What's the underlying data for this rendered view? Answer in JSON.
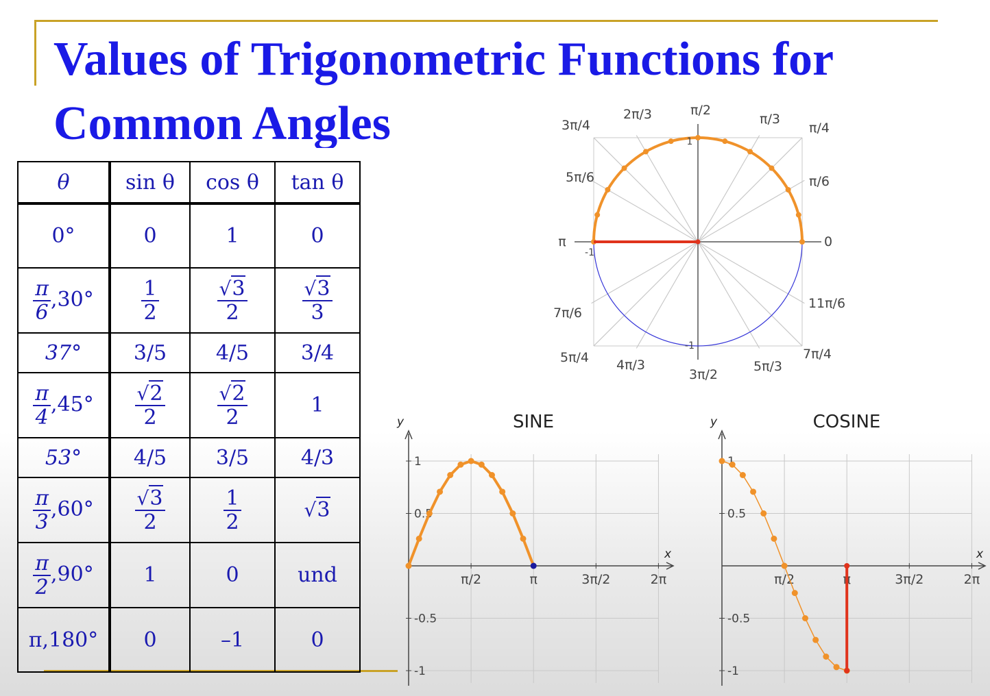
{
  "title": {
    "line1": "Values of Trigonometric Functions for",
    "line2": "Common Angles"
  },
  "table": {
    "headers": [
      "θ",
      "sin θ",
      "cos θ",
      "tan θ"
    ],
    "rows": [
      {
        "angle": "0°",
        "sin": "0",
        "cos": "1",
        "tan": "0"
      },
      {
        "angle_num": "π",
        "angle_den": "6",
        "angle_deg": ",30°",
        "sin_num": "1",
        "sin_den": "2",
        "cos_rad": "3",
        "cos_den": "2",
        "tan_rad": "3",
        "tan_den": "3"
      },
      {
        "angle": "37°",
        "sin": "3/5",
        "cos": "4/5",
        "tan": "3/4"
      },
      {
        "angle_num": "π",
        "angle_den": "4",
        "angle_deg": ",45°",
        "sin_rad": "2",
        "sin_den": "2",
        "cos_rad": "2",
        "cos_den": "2",
        "tan": "1"
      },
      {
        "angle": "53°",
        "sin": "4/5",
        "cos": "3/5",
        "tan": "4/3"
      },
      {
        "angle_num": "π",
        "angle_den": "3",
        "angle_deg": ",60°",
        "sin_rad": "3",
        "sin_den": "2",
        "cos_num": "1",
        "cos_den": "2",
        "tan_rad": "3"
      },
      {
        "angle_num": "π",
        "angle_den": "2",
        "angle_deg": ",90°",
        "sin": "1",
        "cos": "0",
        "tan": "und"
      },
      {
        "angle": "π,180°",
        "sin": "0",
        "cos": "–1",
        "tan": "0"
      }
    ]
  },
  "unit_circle": {
    "angle_labels": [
      "0",
      "π/6",
      "π/4",
      "π/3",
      "π/2",
      "2π/3",
      "3π/4",
      "5π/6",
      "π",
      "7π/6",
      "5π/4",
      "4π/3",
      "3π/2",
      "5π/3",
      "7π/4",
      "11π/6"
    ],
    "axis_ticks": [
      "1",
      "-1",
      "-1"
    ],
    "colors": {
      "arc": "#f0922a",
      "radius": "#e0331c",
      "lower_arc": "#3434d8",
      "spokes": "#c8c8c8"
    }
  },
  "chart_data": [
    {
      "type": "line",
      "title": "SINE",
      "xlabel": "x",
      "ylabel": "y",
      "xlim": [
        0,
        6.2832
      ],
      "ylim": [
        -1,
        1
      ],
      "x_ticks": [
        "π/2",
        "π",
        "3π/2",
        "2π"
      ],
      "y_ticks": [
        "1",
        "0.5",
        "-0.5",
        "-1"
      ],
      "series": [
        {
          "x": [
            0,
            0.2618,
            0.5236,
            0.7854,
            1.0472,
            1.309,
            1.5708,
            1.8326,
            2.0944,
            2.3562,
            2.618,
            2.8798,
            3.1416
          ],
          "y": [
            0,
            0.259,
            0.5,
            0.707,
            0.866,
            0.966,
            1,
            0.966,
            0.866,
            0.707,
            0.5,
            0.259,
            0
          ],
          "color": "#f0922a"
        }
      ],
      "end_point": {
        "x": 3.1416,
        "y": 0,
        "color": "#1a1aa0"
      }
    },
    {
      "type": "line",
      "title": "COSINE",
      "xlabel": "x",
      "ylabel": "y",
      "xlim": [
        0,
        6.2832
      ],
      "ylim": [
        -1,
        1
      ],
      "x_ticks": [
        "π/2",
        "π",
        "3π/2",
        "2π"
      ],
      "y_ticks": [
        "1",
        "0.5",
        "-0.5",
        "-1"
      ],
      "series": [
        {
          "x": [
            0,
            0.2618,
            0.5236,
            0.7854,
            1.0472,
            1.309,
            1.5708,
            1.8326,
            2.0944,
            2.3562,
            2.618,
            2.8798,
            3.1416
          ],
          "y": [
            1,
            0.966,
            0.866,
            0.707,
            0.5,
            0.259,
            0,
            -0.259,
            -0.5,
            -0.707,
            -0.866,
            -0.966,
            -1
          ],
          "color": "#f0922a"
        }
      ],
      "marker_line": {
        "x": 3.1416,
        "y_from": 0,
        "y_to": -1,
        "color": "#e0331c"
      }
    }
  ]
}
